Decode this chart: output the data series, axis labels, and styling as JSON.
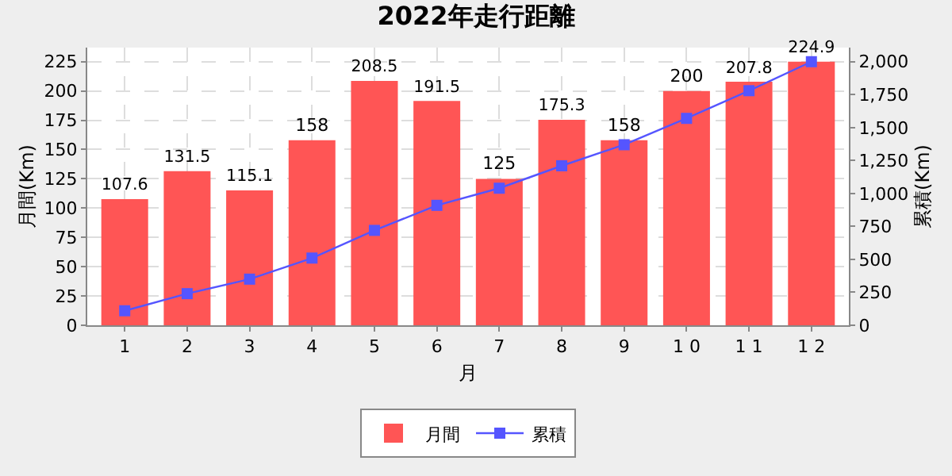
{
  "chart_data": {
    "type": "bar",
    "title": "2022年走行距離",
    "xlabel": "月",
    "ylabel": "月間(Km)",
    "y2label": "累積(Km)",
    "categories": [
      "1",
      "2",
      "3",
      "4",
      "5",
      "6",
      "7",
      "8",
      "9",
      "1 0",
      "1 1",
      "1 2"
    ],
    "series": [
      {
        "name": "月間",
        "color": "#ff5555",
        "values": [
          107.6,
          131.5,
          115.1,
          158,
          208.5,
          191.5,
          125,
          175.3,
          158,
          200,
          207.8,
          224.9
        ],
        "value_labels": [
          "107.6",
          "131.5",
          "115.1",
          "158",
          "208.5",
          "191.5",
          "125",
          "175.3",
          "158",
          "200",
          "207.8",
          "224.9"
        ]
      },
      {
        "name": "累積",
        "type": "line",
        "axis": "y2",
        "color": "#5555ff",
        "marker": "square",
        "line_style": "solid",
        "values": [
          110,
          240,
          350,
          510,
          720,
          910,
          1040,
          1210,
          1370,
          1570,
          1780,
          2000
        ]
      }
    ],
    "ylim": [
      0,
      237
    ],
    "yticks": [
      0,
      25,
      50,
      75,
      100,
      125,
      150,
      175,
      200,
      225
    ],
    "y2lim": [
      0,
      2107
    ],
    "y2ticks": [
      0,
      {
        "value": 250,
        "label": "250"
      },
      {
        "value": 500,
        "label": "500"
      },
      {
        "value": 750,
        "label": "750"
      },
      {
        "value": 1000,
        "label": "1,000"
      },
      {
        "value": 1250,
        "label": "1,250"
      },
      {
        "value": 1500,
        "label": "1,500"
      },
      {
        "value": 1750,
        "label": "1,750"
      },
      {
        "value": 2000,
        "label": "2,000"
      }
    ],
    "grid": true,
    "legend": "bottom"
  }
}
